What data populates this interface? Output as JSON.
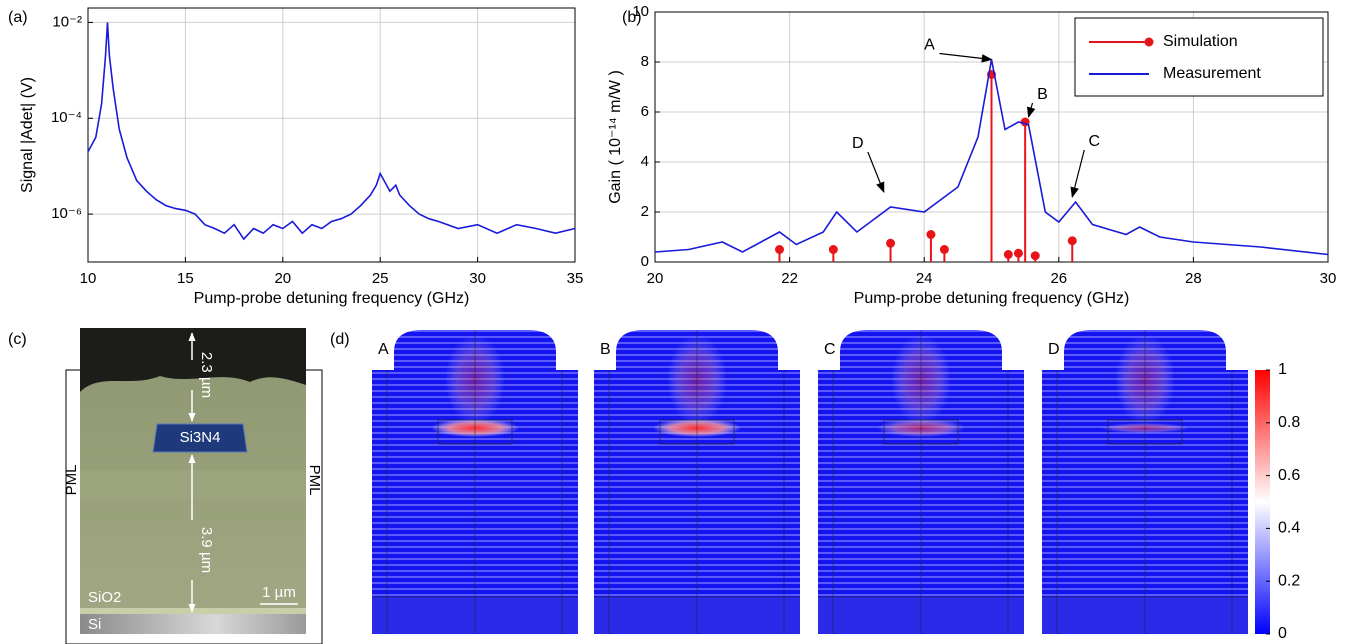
{
  "chart_data": [
    {
      "type": "line",
      "panel_label": "(a)",
      "xlabel": "Pump-probe detuning frequency (GHz)",
      "ylabel": "Signal |Adet| (V)",
      "log_y": true,
      "grid": true,
      "xlim": [
        10,
        35
      ],
      "xticks": [
        10,
        15,
        20,
        25,
        30,
        35
      ],
      "ylim": [
        1e-07,
        0.02
      ],
      "yticks": [
        {
          "value": 1e-06,
          "label": "10⁻⁶"
        },
        {
          "value": 0.0001,
          "label": "10⁻⁴"
        },
        {
          "value": 0.01,
          "label": "10⁻²"
        }
      ],
      "series": [
        {
          "color": "#1a1adb",
          "style": "line",
          "x": [
            10,
            10.4,
            10.7,
            10.9,
            11.0,
            11.1,
            11.3,
            11.6,
            12,
            12.5,
            13,
            13.5,
            14,
            14.5,
            15,
            15.5,
            16,
            16.5,
            17,
            17.5,
            18,
            18.5,
            19,
            19.5,
            20,
            20.5,
            21,
            21.5,
            22,
            22.5,
            23,
            23.5,
            24,
            24.5,
            24.8,
            25.0,
            25.2,
            25.5,
            25.8,
            26,
            26.5,
            27,
            27.5,
            28,
            29,
            30,
            31,
            32,
            33,
            34,
            35
          ],
          "values": [
            2e-05,
            4e-05,
            0.0002,
            0.002,
            0.01,
            0.002,
            0.0004,
            6e-05,
            1.5e-05,
            5e-06,
            3e-06,
            2e-06,
            1.5e-06,
            1.3e-06,
            1.2e-06,
            1e-06,
            6e-07,
            5e-07,
            4e-07,
            6e-07,
            3e-07,
            5e-07,
            4e-07,
            6e-07,
            5e-07,
            7e-07,
            4e-07,
            6e-07,
            5e-07,
            7e-07,
            8e-07,
            1e-06,
            1.5e-06,
            2.5e-06,
            4e-06,
            7e-06,
            5e-06,
            3e-06,
            4e-06,
            2.5e-06,
            1.5e-06,
            1e-06,
            8e-07,
            7e-07,
            5e-07,
            6e-07,
            4e-07,
            6e-07,
            5e-07,
            4e-07,
            5e-07
          ]
        }
      ]
    },
    {
      "type": "line",
      "panel_label": "(b)",
      "xlabel": "Pump-probe detuning frequency (GHz)",
      "ylabel": "Gain ( 10⁻¹⁴ m/W )",
      "log_y": false,
      "grid": true,
      "legend": "upper right",
      "xlim": [
        20,
        30
      ],
      "xticks": [
        20,
        22,
        24,
        26,
        28,
        30
      ],
      "ylim": [
        0,
        10
      ],
      "yticks": [
        0,
        2,
        4,
        6,
        8,
        10
      ],
      "series": [
        {
          "name": "Simulation",
          "color": "#e8141a",
          "style": "stem",
          "x": [
            21.85,
            22.65,
            23.5,
            24.1,
            24.3,
            25.0,
            25.25,
            25.4,
            25.5,
            25.65,
            26.2
          ],
          "values": [
            0.5,
            0.5,
            0.75,
            1.1,
            0.5,
            7.5,
            0.3,
            0.35,
            5.6,
            0.25,
            0.85
          ]
        },
        {
          "name": "Measurement",
          "color": "#1a1adb",
          "style": "line",
          "x": [
            20,
            20.5,
            21,
            21.3,
            21.85,
            22.1,
            22.5,
            22.7,
            23,
            23.5,
            24,
            24.5,
            24.8,
            25,
            25.2,
            25.4,
            25.55,
            25.8,
            26,
            26.25,
            26.5,
            27,
            27.2,
            27.5,
            28,
            29,
            30
          ],
          "values": [
            0.4,
            0.5,
            0.8,
            0.4,
            1.2,
            0.7,
            1.2,
            2.0,
            1.2,
            2.2,
            2.0,
            3.0,
            5.0,
            8.1,
            5.3,
            5.6,
            5.5,
            2.0,
            1.6,
            2.4,
            1.5,
            1.1,
            1.4,
            1.0,
            0.8,
            0.6,
            0.3
          ]
        }
      ],
      "annotations": [
        {
          "text": "A",
          "x": 25.0,
          "y": 8.1
        },
        {
          "text": "B",
          "x": 25.55,
          "y": 5.8
        },
        {
          "text": "C",
          "x": 26.2,
          "y": 2.6
        },
        {
          "text": "D",
          "x": 23.4,
          "y": 2.8
        }
      ]
    }
  ],
  "sem_image": {
    "panel_label": "(c)",
    "top_gap": "2.3 µm",
    "core": "Si3N4",
    "bottom_gap": "3.9 µm",
    "cladding": "SiO2",
    "substrate": "Si",
    "scale_bar": "1 µm",
    "pml_left": "PML",
    "pml_right": "PML"
  },
  "field_maps": {
    "panel_label": "(d)",
    "maps": [
      "A",
      "B",
      "C",
      "D"
    ],
    "colorbar": {
      "lim": [
        0,
        1
      ],
      "ticks": [
        0,
        0.2,
        0.4,
        0.6,
        0.8,
        1
      ]
    }
  }
}
